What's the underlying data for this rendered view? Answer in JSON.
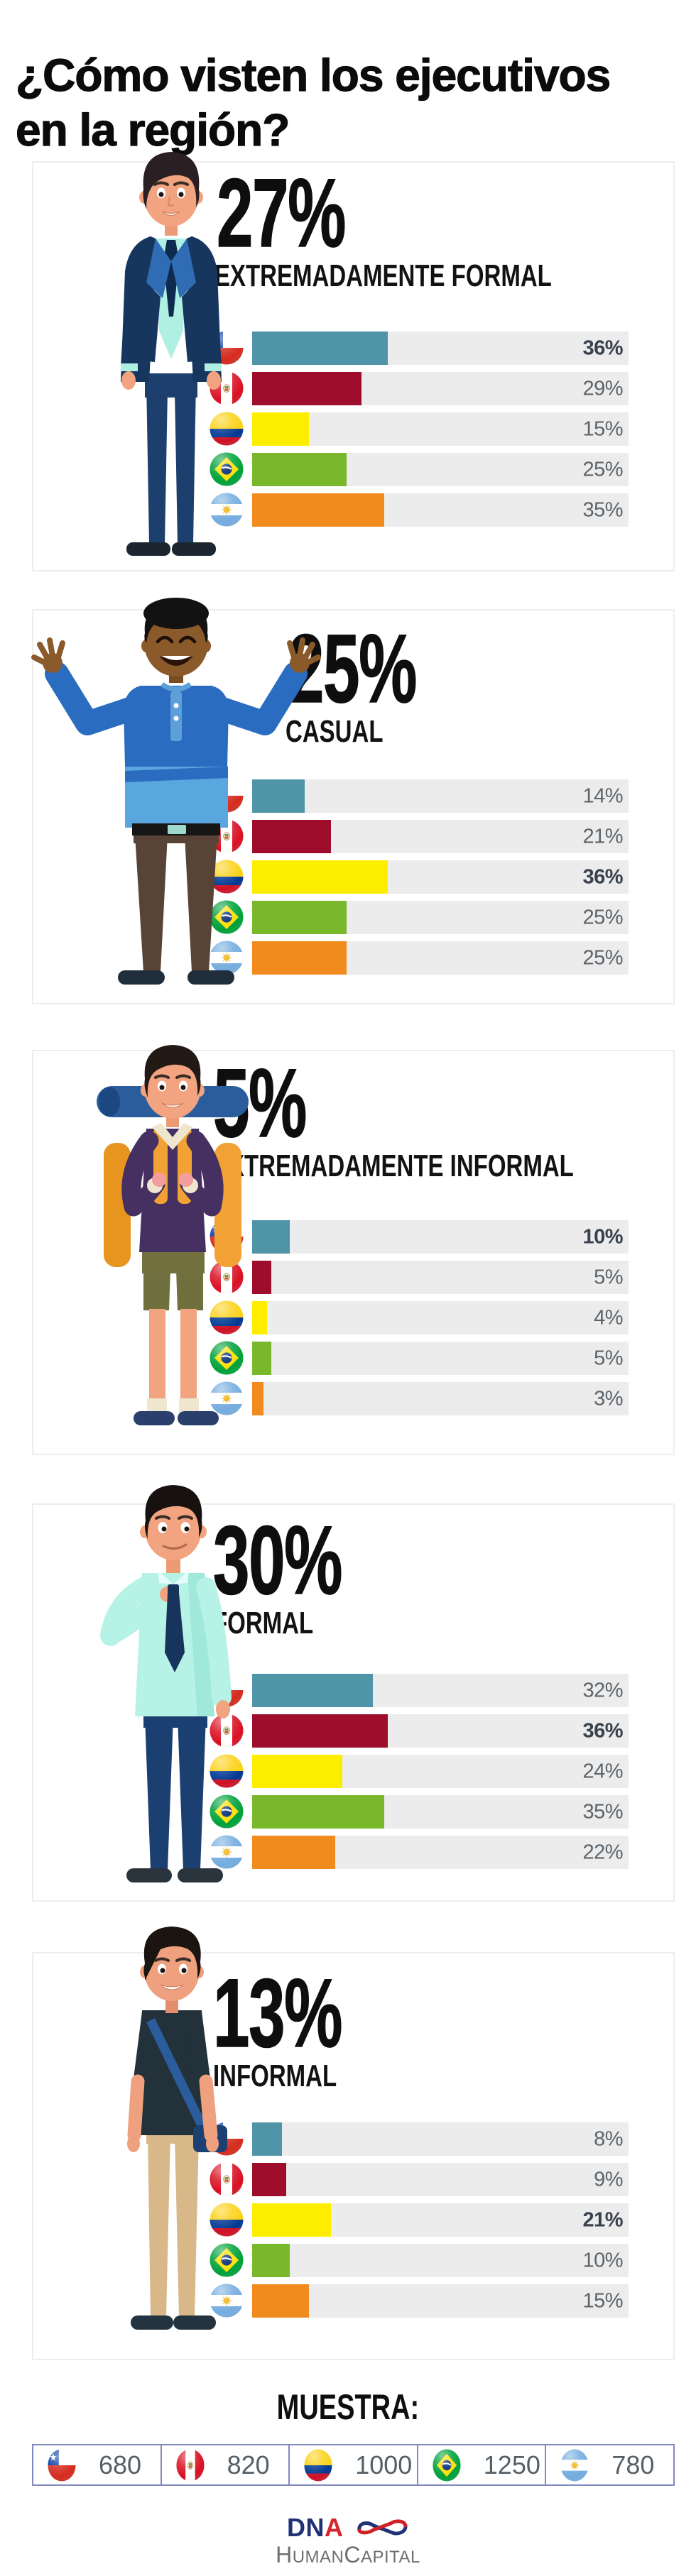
{
  "title": {
    "line1": "¿Cómo visten los ejecutivos",
    "line2": "en la región?"
  },
  "colors": {
    "chile": "#5094a8",
    "peru": "#9e0e2c",
    "colombia": "#fdee00",
    "brazil": "#78b82a",
    "argentina": "#f28b1d",
    "track": "#ececec",
    "value_label": "#5c646b",
    "value_label_bold": "#39424c"
  },
  "countries": [
    "chile",
    "peru",
    "colombia",
    "brazil",
    "argentina"
  ],
  "chart_data": {
    "type": "bar",
    "title": "¿Cómo visten los ejecutivos en la región?",
    "categories": [
      "Chile",
      "Perú",
      "Colombia",
      "Brasil",
      "Argentina"
    ],
    "sections": [
      {
        "percent": "27%",
        "label": "EXTREMADAMENTE FORMAL",
        "values": [
          36,
          29,
          15,
          25,
          35
        ]
      },
      {
        "percent": "25%",
        "label": "CASUAL",
        "values": [
          14,
          21,
          36,
          25,
          25
        ]
      },
      {
        "percent": "5%",
        "label": "EXTREMADAMENTE INFORMAL",
        "values": [
          10,
          5,
          4,
          5,
          3
        ]
      },
      {
        "percent": "30%",
        "label": "FORMAL",
        "values": [
          32,
          36,
          24,
          35,
          22
        ]
      },
      {
        "percent": "13%",
        "label": "INFORMAL",
        "values": [
          8,
          9,
          21,
          10,
          15
        ]
      }
    ],
    "xlim": [
      0,
      100
    ],
    "unit": "%"
  },
  "sections": [
    {
      "percent": "27%",
      "label": "EXTREMADAMENTE FORMAL",
      "rows": [
        {
          "country": "chile",
          "value": 36,
          "bold": true
        },
        {
          "country": "peru",
          "value": 29,
          "bold": false
        },
        {
          "country": "colombia",
          "value": 15,
          "bold": false
        },
        {
          "country": "brazil",
          "value": 25,
          "bold": false
        },
        {
          "country": "argentina",
          "value": 35,
          "bold": false
        }
      ]
    },
    {
      "percent": "25%",
      "label": "CASUAL",
      "rows": [
        {
          "country": "chile",
          "value": 14,
          "bold": false
        },
        {
          "country": "peru",
          "value": 21,
          "bold": false
        },
        {
          "country": "colombia",
          "value": 36,
          "bold": true
        },
        {
          "country": "brazil",
          "value": 25,
          "bold": false
        },
        {
          "country": "argentina",
          "value": 25,
          "bold": false
        }
      ]
    },
    {
      "percent": "5%",
      "label": "EXTREMADAMENTE INFORMAL",
      "rows": [
        {
          "country": "chile",
          "value": 10,
          "bold": true
        },
        {
          "country": "peru",
          "value": 5,
          "bold": false
        },
        {
          "country": "colombia",
          "value": 4,
          "bold": false
        },
        {
          "country": "brazil",
          "value": 5,
          "bold": false
        },
        {
          "country": "argentina",
          "value": 3,
          "bold": false
        }
      ]
    },
    {
      "percent": "30%",
      "label": "FORMAL",
      "rows": [
        {
          "country": "chile",
          "value": 32,
          "bold": false
        },
        {
          "country": "peru",
          "value": 36,
          "bold": true
        },
        {
          "country": "colombia",
          "value": 24,
          "bold": false
        },
        {
          "country": "brazil",
          "value": 35,
          "bold": false
        },
        {
          "country": "argentina",
          "value": 22,
          "bold": false
        }
      ]
    },
    {
      "percent": "13%",
      "label": "INFORMAL",
      "rows": [
        {
          "country": "chile",
          "value": 8,
          "bold": false
        },
        {
          "country": "peru",
          "value": 9,
          "bold": false
        },
        {
          "country": "colombia",
          "value": 21,
          "bold": true
        },
        {
          "country": "brazil",
          "value": 10,
          "bold": false
        },
        {
          "country": "argentina",
          "value": 15,
          "bold": false
        }
      ]
    }
  ],
  "muestra": {
    "heading": "MUESTRA:",
    "samples": [
      {
        "country": "chile",
        "n": "680"
      },
      {
        "country": "peru",
        "n": "820"
      },
      {
        "country": "colombia",
        "n": "1000"
      },
      {
        "country": "brazil",
        "n": "1250"
      },
      {
        "country": "argentina",
        "n": "780"
      }
    ]
  },
  "footer": {
    "dna_dn": "DN",
    "dna_a": "A",
    "hc": [
      "H",
      "UMAN",
      "C",
      "APITAL"
    ]
  }
}
